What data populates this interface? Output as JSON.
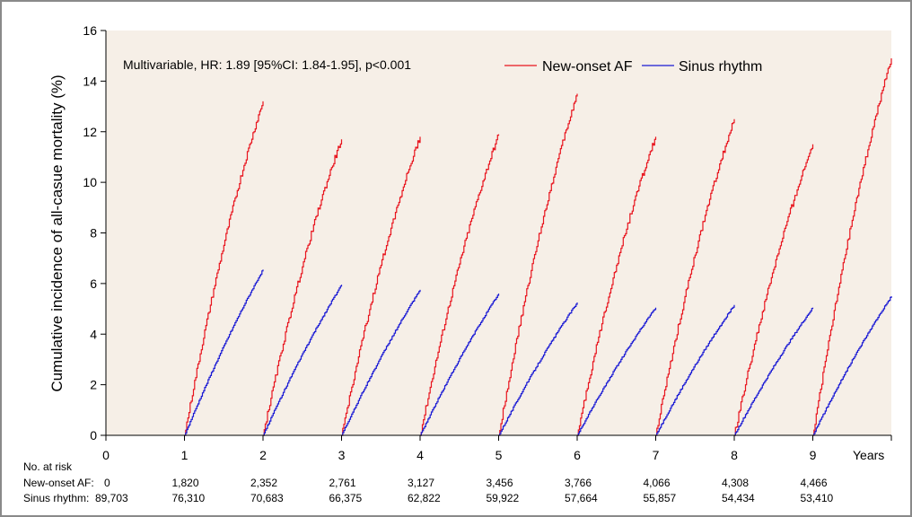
{
  "chart_data": {
    "type": "line",
    "ylabel": "Cumulative incidence of all-casue mortality (%)",
    "xlabel": "Years",
    "xlim": [
      0,
      10
    ],
    "ylim": [
      0,
      16
    ],
    "x_ticks": [
      0,
      1,
      2,
      3,
      4,
      5,
      6,
      7,
      8,
      9
    ],
    "y_ticks": [
      0,
      2,
      4,
      6,
      8,
      10,
      12,
      14,
      16
    ],
    "grid": false,
    "legend_placement": "top-right",
    "annotation": "Multivariable, HR: 1.89 [95%CI: 1.84-1.95], p<0.001",
    "series": [
      {
        "name": "New-onset AF",
        "color": "#e8141e",
        "segments": [
          {
            "start": 1,
            "end_value": 13.2
          },
          {
            "start": 2,
            "end_value": 11.7
          },
          {
            "start": 3,
            "end_value": 11.8
          },
          {
            "start": 4,
            "end_value": 11.9
          },
          {
            "start": 5,
            "end_value": 13.5
          },
          {
            "start": 6,
            "end_value": 11.8
          },
          {
            "start": 7,
            "end_value": 12.5
          },
          {
            "start": 8,
            "end_value": 11.5
          },
          {
            "start": 9,
            "end_value": 14.9
          }
        ]
      },
      {
        "name": "Sinus rhythm",
        "color": "#1a1ad4",
        "segments": [
          {
            "start": 1,
            "end_value": 6.55
          },
          {
            "start": 2,
            "end_value": 5.95
          },
          {
            "start": 3,
            "end_value": 5.75
          },
          {
            "start": 4,
            "end_value": 5.6
          },
          {
            "start": 5,
            "end_value": 5.25
          },
          {
            "start": 6,
            "end_value": 5.05
          },
          {
            "start": 7,
            "end_value": 5.15
          },
          {
            "start": 8,
            "end_value": 5.05
          },
          {
            "start": 9,
            "end_value": 5.5
          }
        ]
      }
    ],
    "at_risk": {
      "header": "No. at risk",
      "rows": [
        {
          "label": "New-onset AF:",
          "values": [
            "0",
            "1,820",
            "2,352",
            "2,761",
            "3,127",
            "3,456",
            "3,766",
            "4,066",
            "4,308",
            "4,466"
          ]
        },
        {
          "label": "Sinus rhythm:",
          "values": [
            "89,703",
            "76,310",
            "70,683",
            "66,375",
            "62,822",
            "59,922",
            "57,664",
            "55,857",
            "54,434",
            "53,410"
          ]
        }
      ]
    }
  },
  "colors": {
    "plot_background": "#f6efe7",
    "frame_border": "#8a8a8a"
  }
}
